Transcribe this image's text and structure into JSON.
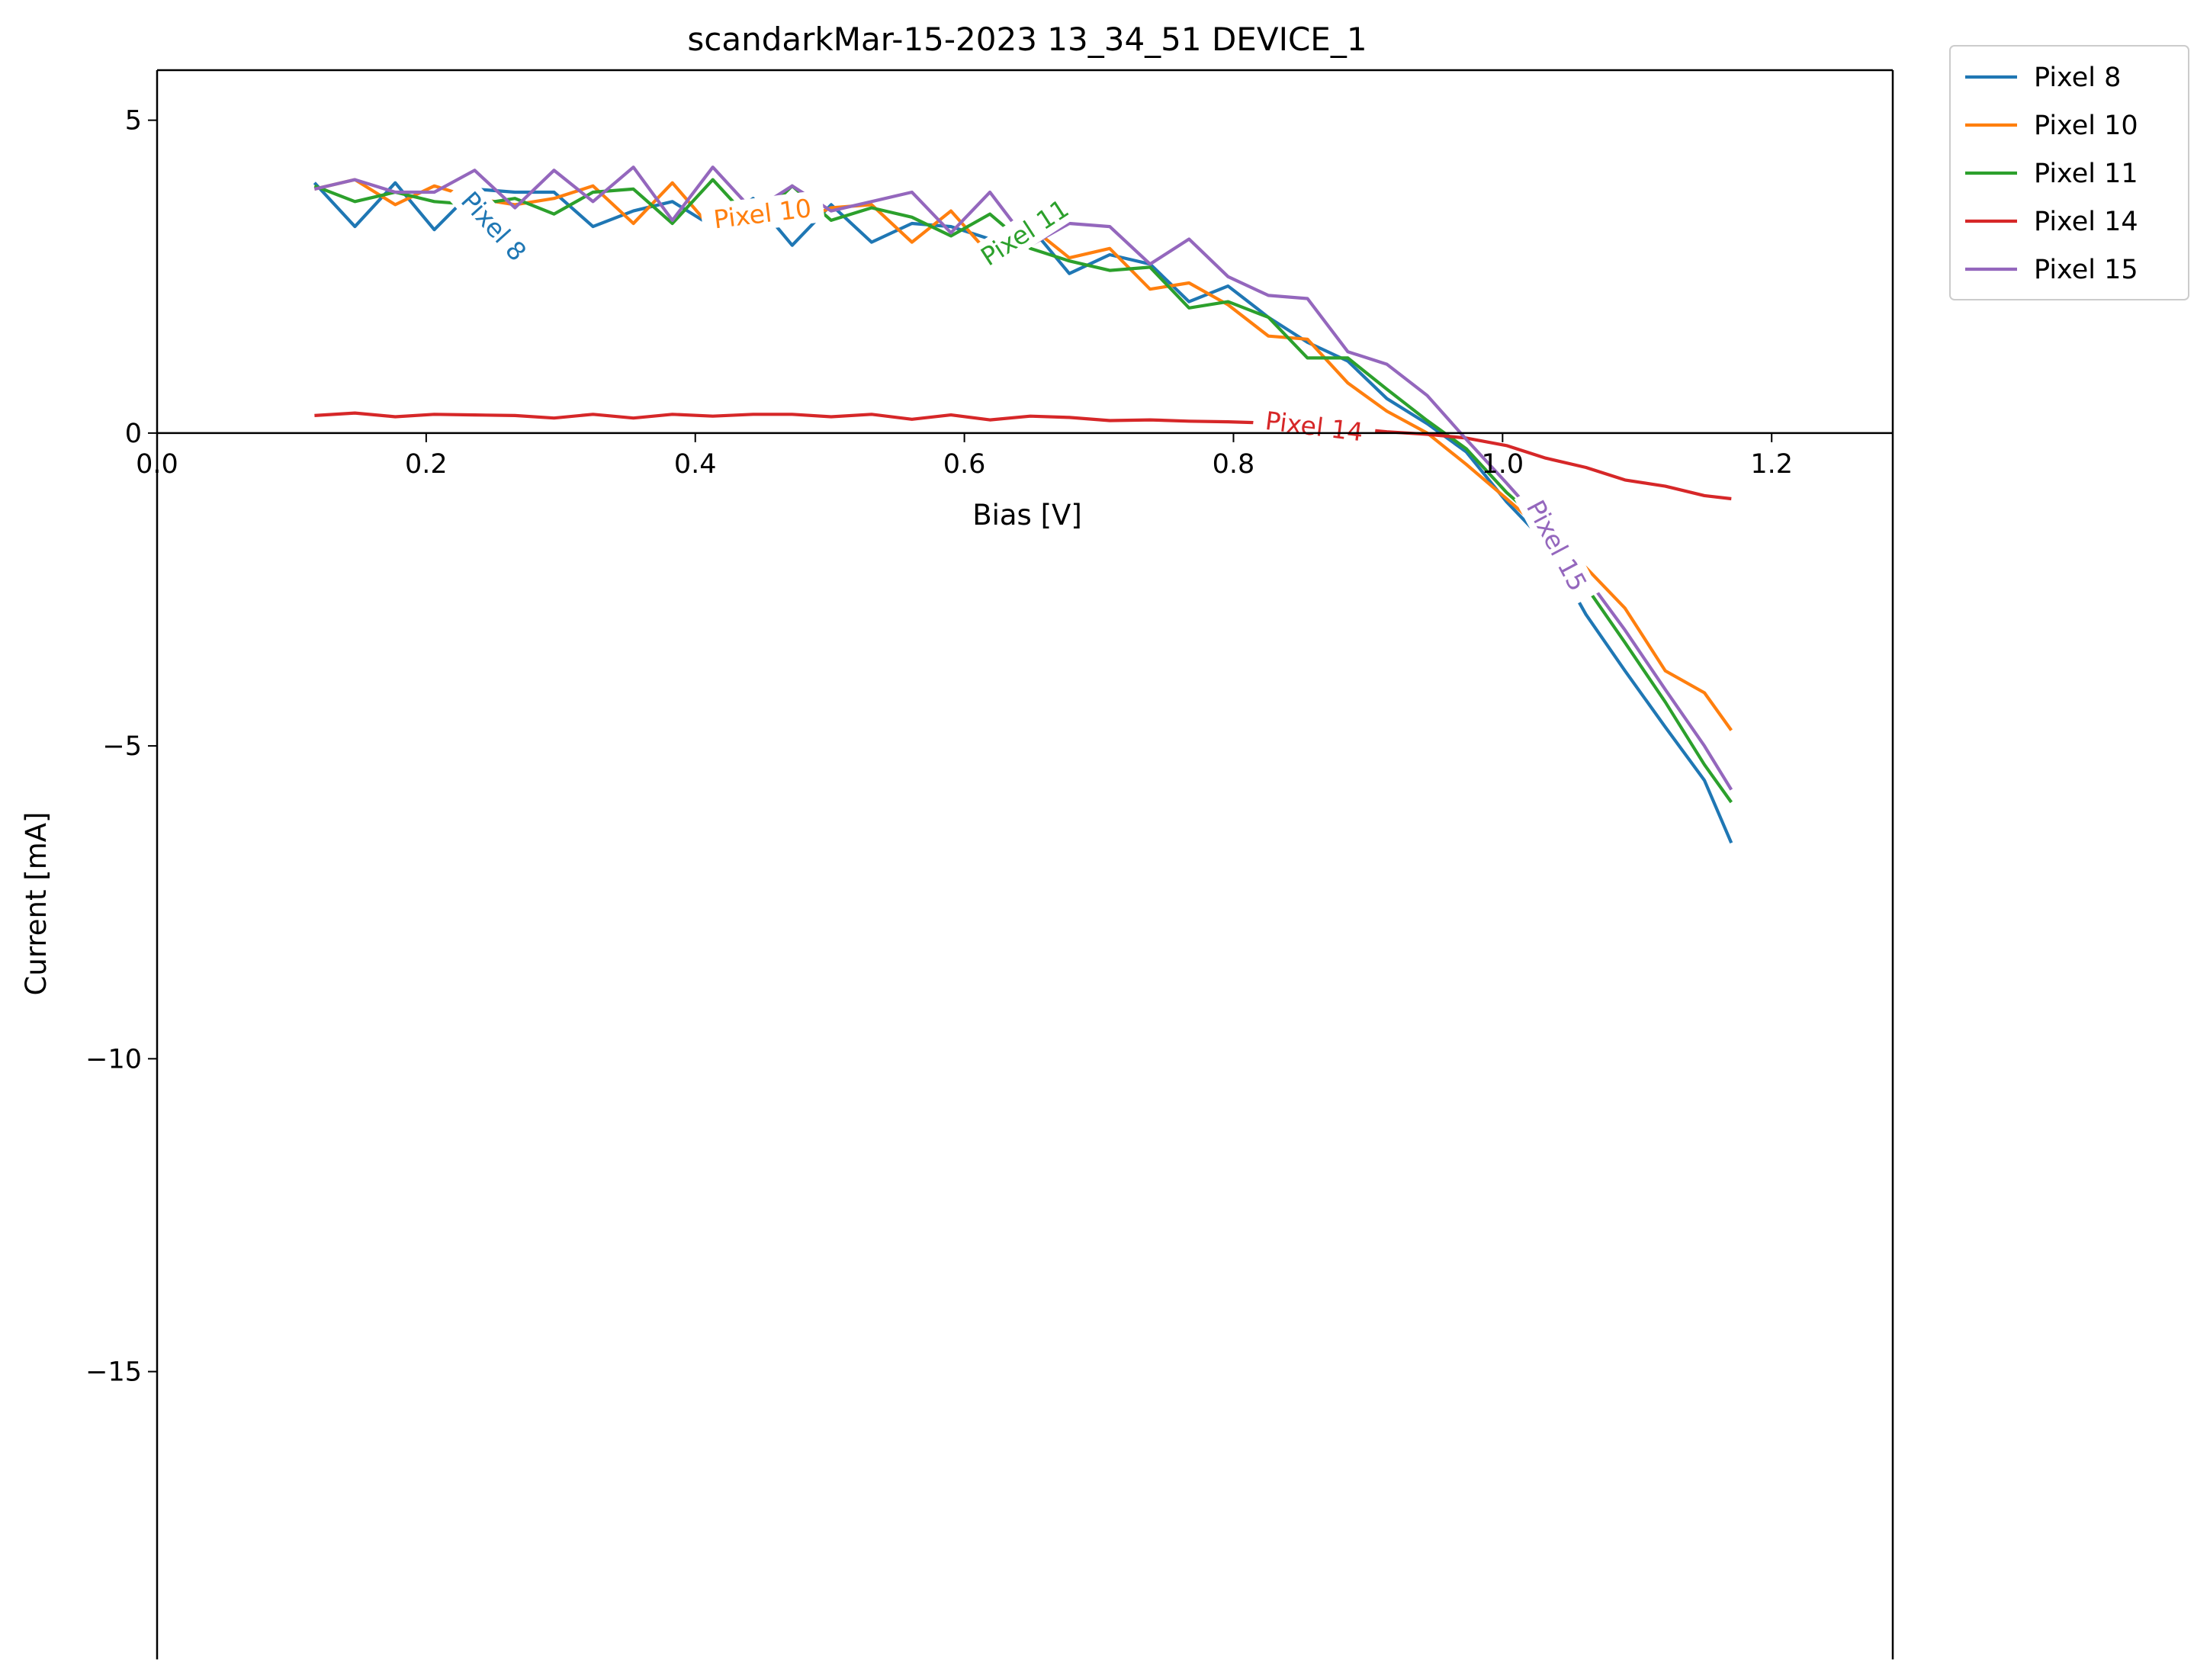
{
  "chart_data": {
    "type": "line",
    "title": "scandarkMar-15-2023 13_34_51 DEVICE_1",
    "xlabel": "Bias [V]",
    "ylabel": "Current [mA]",
    "xlim": [
      0.0,
      1.29
    ],
    "ylim": [
      -19.6,
      5.8
    ],
    "xticks": [
      0.0,
      0.2,
      0.4,
      0.6,
      0.8,
      1.0,
      1.2
    ],
    "xtick_labels": [
      "0.0",
      "0.2",
      "0.4",
      "0.6",
      "0.8",
      "1.0",
      "1.2"
    ],
    "yticks": [
      5,
      0,
      -5,
      -10,
      -15
    ],
    "ytick_labels": [
      "5",
      "0",
      "−5",
      "−10",
      "−15"
    ],
    "grid": false,
    "legend_position": "outside-top-right",
    "x": [
      0.117,
      0.147,
      0.177,
      0.206,
      0.236,
      0.266,
      0.295,
      0.324,
      0.354,
      0.383,
      0.413,
      0.443,
      0.472,
      0.501,
      0.531,
      0.561,
      0.59,
      0.619,
      0.649,
      0.678,
      0.708,
      0.738,
      0.767,
      0.796,
      0.826,
      0.855,
      0.885,
      0.914,
      0.944,
      0.973,
      1.003,
      1.032,
      1.062,
      1.091,
      1.121,
      1.15,
      1.17
    ],
    "series": [
      {
        "name": "Pixel 8",
        "color": "#1f77b4",
        "label_x": 0.25,
        "label_y": 3.3,
        "label_angle": 48,
        "values": [
          4.0,
          3.3,
          4.0,
          3.25,
          3.9,
          3.85,
          3.85,
          3.3,
          3.55,
          3.7,
          3.3,
          3.75,
          3.0,
          3.65,
          3.05,
          3.35,
          3.3,
          3.1,
          3.3,
          2.55,
          2.85,
          2.7,
          2.1,
          2.35,
          1.85,
          1.45,
          1.15,
          0.55,
          0.15,
          -0.3,
          -1.1,
          -1.75,
          -2.9,
          -3.8,
          -4.7,
          -5.55,
          -6.55
        ]
      },
      {
        "name": "Pixel 10",
        "color": "#ff7f0e",
        "label_x": 0.45,
        "label_y": 3.5,
        "label_angle": -7,
        "values": [
          3.9,
          4.05,
          3.65,
          3.95,
          3.75,
          3.65,
          3.75,
          3.95,
          3.35,
          4.0,
          3.25,
          3.6,
          3.35,
          3.6,
          3.65,
          3.05,
          3.55,
          2.85,
          3.3,
          2.8,
          2.95,
          2.3,
          2.4,
          2.05,
          1.55,
          1.5,
          0.8,
          0.35,
          0.0,
          -0.5,
          -1.05,
          -1.6,
          -2.15,
          -2.8,
          -3.8,
          -4.15,
          -4.75
        ]
      },
      {
        "name": "Pixel 11",
        "color": "#2ca02c",
        "label_x": 0.645,
        "label_y": 3.2,
        "label_angle": -33,
        "values": [
          3.95,
          3.7,
          3.85,
          3.7,
          3.65,
          3.75,
          3.5,
          3.85,
          3.9,
          3.35,
          4.05,
          3.35,
          3.95,
          3.4,
          3.6,
          3.45,
          3.15,
          3.5,
          2.95,
          2.75,
          2.6,
          2.65,
          2.0,
          2.1,
          1.85,
          1.2,
          1.2,
          0.7,
          0.2,
          -0.25,
          -0.95,
          -1.5,
          -2.45,
          -3.35,
          -4.3,
          -5.3,
          -5.9
        ]
      },
      {
        "name": "Pixel 14",
        "color": "#d62728",
        "label_x": 0.86,
        "label_y": 0.1,
        "label_angle": 7,
        "values": [
          0.28,
          0.32,
          0.26,
          0.3,
          0.29,
          0.28,
          0.24,
          0.3,
          0.24,
          0.3,
          0.27,
          0.3,
          0.3,
          0.26,
          0.3,
          0.22,
          0.29,
          0.21,
          0.27,
          0.25,
          0.2,
          0.21,
          0.19,
          0.18,
          0.16,
          0.12,
          0.08,
          0.02,
          -0.02,
          -0.08,
          -0.2,
          -0.4,
          -0.55,
          -0.75,
          -0.85,
          -1.0,
          -1.05
        ]
      },
      {
        "name": "Pixel 15",
        "color": "#9467bd",
        "label_x": 1.04,
        "label_y": -1.8,
        "label_angle": 62,
        "values": [
          3.9,
          4.05,
          3.85,
          3.85,
          4.2,
          3.6,
          4.2,
          3.7,
          4.25,
          3.4,
          4.25,
          3.55,
          3.95,
          3.55,
          3.7,
          3.85,
          3.2,
          3.85,
          3.0,
          3.35,
          3.3,
          2.7,
          3.1,
          2.5,
          2.2,
          2.15,
          1.3,
          1.1,
          0.6,
          -0.1,
          -0.8,
          -1.5,
          -2.3,
          -3.15,
          -4.1,
          -5.0,
          -5.7
        ]
      }
    ]
  }
}
